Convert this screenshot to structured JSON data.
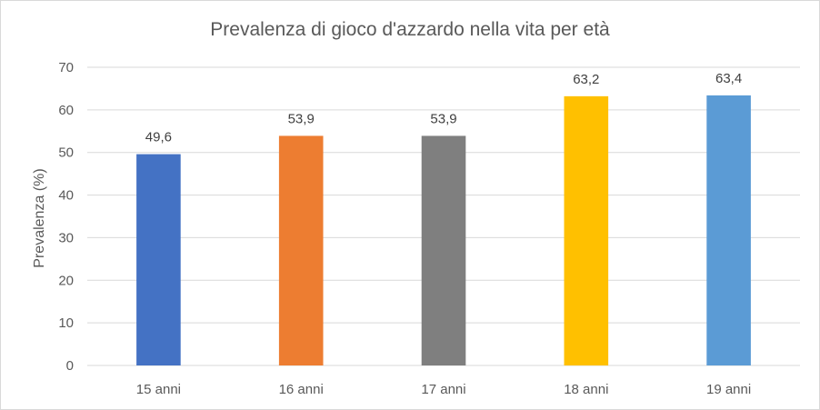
{
  "chart_data": {
    "type": "bar",
    "title": "Prevalenza di gioco d'azzardo nella vita per età",
    "xlabel": "",
    "ylabel": "Prevalenza (%)",
    "categories": [
      "15 anni",
      "16 anni",
      "17 anni",
      "18 anni",
      "19 anni"
    ],
    "values": [
      49.6,
      53.9,
      53.9,
      63.2,
      63.4
    ],
    "data_labels": [
      "49,6",
      "53,9",
      "53,9",
      "63,2",
      "63,4"
    ],
    "bar_colors": [
      "#4472c4",
      "#ed7d31",
      "#7f7f7f",
      "#ffc000",
      "#5b9bd5"
    ],
    "ylim": [
      0,
      70
    ],
    "yticks": [
      "0",
      "10",
      "20",
      "30",
      "40",
      "50",
      "60",
      "70"
    ],
    "grid": true,
    "legend": "none"
  }
}
